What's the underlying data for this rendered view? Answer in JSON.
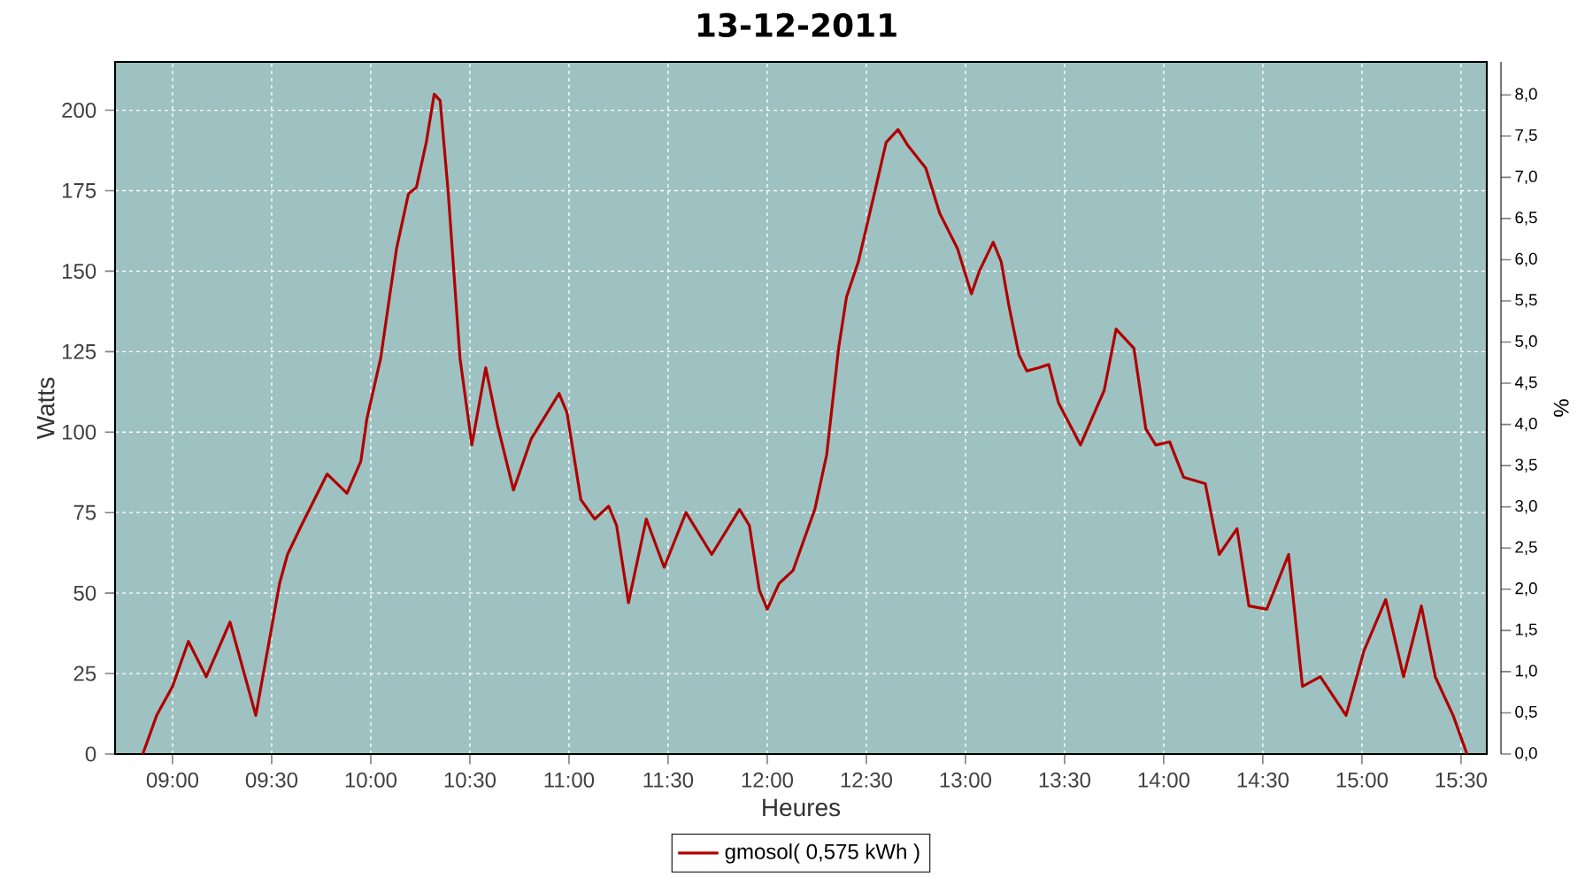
{
  "chart_data": {
    "type": "line",
    "title": "13-12-2011",
    "xlabel": "Heures",
    "ylabel": "Watts",
    "y2label": "%",
    "x": [
      8.85,
      8.92,
      9.0,
      9.08,
      9.17,
      9.29,
      9.42,
      9.54,
      9.58,
      9.65,
      9.78,
      9.88,
      9.95,
      9.98,
      10.05,
      10.13,
      10.19,
      10.23,
      10.28,
      10.32,
      10.35,
      10.39,
      10.45,
      10.51,
      10.58,
      10.64,
      10.72,
      10.81,
      10.95,
      10.99,
      11.06,
      11.13,
      11.2,
      11.24,
      11.3,
      11.39,
      11.48,
      11.59,
      11.72,
      11.86,
      11.91,
      11.96,
      12.0,
      12.06,
      12.13,
      12.24,
      12.3,
      12.36,
      12.4,
      12.46,
      12.54,
      12.6,
      12.66,
      12.71,
      12.8,
      12.87,
      12.96,
      13.03,
      13.07,
      13.14,
      13.18,
      13.22,
      13.27,
      13.31,
      13.37,
      13.42,
      13.47,
      13.58,
      13.7,
      13.76,
      13.85,
      13.91,
      13.96,
      14.03,
      14.1,
      14.21,
      14.28,
      14.37,
      14.43,
      14.52,
      14.63,
      14.7,
      14.79,
      14.92,
      15.01,
      15.12,
      15.21,
      15.3,
      15.37,
      15.46,
      15.53
    ],
    "series": [
      {
        "name": "gmosol( 0,575 kWh )",
        "color": "#b00000",
        "values": [
          0,
          12,
          21,
          35,
          24,
          41,
          12,
          53,
          62,
          71,
          87,
          81,
          91,
          104,
          123,
          157,
          174,
          176,
          190,
          205,
          203,
          175,
          123,
          96,
          120,
          102,
          82,
          98,
          112,
          106,
          79,
          73,
          77,
          71,
          47,
          73,
          58,
          75,
          62,
          76,
          71,
          51,
          45,
          53,
          57,
          76,
          93,
          126,
          142,
          153,
          174,
          190,
          194,
          189,
          182,
          168,
          157,
          143,
          150,
          159,
          153,
          139,
          124,
          119,
          120,
          121,
          109,
          96,
          113,
          132,
          126,
          101,
          96,
          97,
          86,
          84,
          62,
          70,
          46,
          45,
          62,
          21,
          24,
          12,
          32,
          48,
          24,
          46,
          24,
          12,
          0
        ]
      }
    ],
    "xlim": [
      8.71,
      15.63
    ],
    "ylim": [
      0,
      215
    ],
    "y2lim": [
      0,
      8.4
    ],
    "xticks": [
      {
        "value": 9,
        "label": "09:00"
      },
      {
        "value": 9.5,
        "label": "09:30"
      },
      {
        "value": 10,
        "label": "10:00"
      },
      {
        "value": 10.5,
        "label": "10:30"
      },
      {
        "value": 11,
        "label": "11:00"
      },
      {
        "value": 11.5,
        "label": "11:30"
      },
      {
        "value": 12,
        "label": "12:00"
      },
      {
        "value": 12.5,
        "label": "12:30"
      },
      {
        "value": 13,
        "label": "13:00"
      },
      {
        "value": 13.5,
        "label": "13:30"
      },
      {
        "value": 14,
        "label": "14:00"
      },
      {
        "value": 14.5,
        "label": "14:30"
      },
      {
        "value": 15,
        "label": "15:00"
      },
      {
        "value": 15.5,
        "label": "15:30"
      }
    ],
    "yticks": [
      0,
      25,
      50,
      75,
      100,
      125,
      150,
      175,
      200
    ],
    "y2ticks": [
      {
        "value": 0,
        "label": "0,0"
      },
      {
        "value": 0.5,
        "label": "0,5"
      },
      {
        "value": 1,
        "label": "1,0"
      },
      {
        "value": 1.5,
        "label": "1,5"
      },
      {
        "value": 2,
        "label": "2,0"
      },
      {
        "value": 2.5,
        "label": "2,5"
      },
      {
        "value": 3,
        "label": "3,0"
      },
      {
        "value": 3.5,
        "label": "3,5"
      },
      {
        "value": 4,
        "label": "4,0"
      },
      {
        "value": 4.5,
        "label": "4,5"
      },
      {
        "value": 5,
        "label": "5,0"
      },
      {
        "value": 5.5,
        "label": "5,5"
      },
      {
        "value": 6,
        "label": "6,0"
      },
      {
        "value": 6.5,
        "label": "6,5"
      },
      {
        "value": 7,
        "label": "7,0"
      },
      {
        "value": 7.5,
        "label": "7,5"
      },
      {
        "value": 8,
        "label": "8,0"
      }
    ],
    "grid": true,
    "legend": "bottom",
    "marker": "none",
    "line_style": "solid"
  }
}
